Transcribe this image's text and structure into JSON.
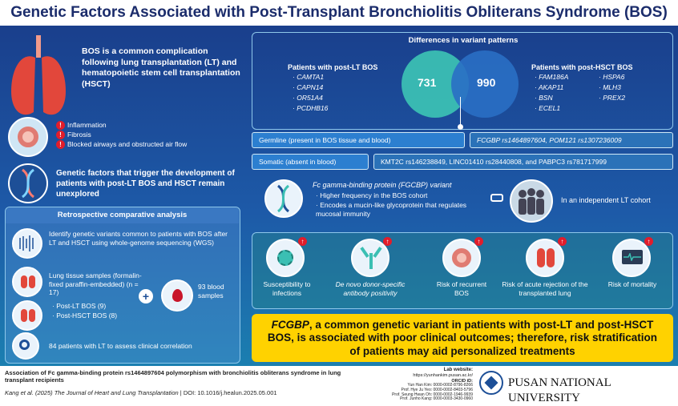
{
  "title": "Genetic Factors Associated with Post-Transplant Bronchiolitis Obliterans Syndrome (BOS)",
  "intro": {
    "text": "BOS is a common complication following lung transplantation (LT) and hematopoietic stem cell transplantation (HSCT)"
  },
  "symptoms": [
    "Inflammation",
    "Fibrosis",
    "Blocked airways and obstructed air flow"
  ],
  "genetic_text": "Genetic factors that trigger the development of patients with post-LT BOS and HSCT remain unexplored",
  "analysis": {
    "title": "Retrospective comparative analysis",
    "step1": "Identify genetic variants common to patients with BOS after LT and HSCT using whole-genome sequencing (WGS)",
    "samples_text": "Lung tissue samples (formalin-fixed paraffin-embedded) (n = 17)",
    "lt": "Post-LT BOS (9)",
    "hsct": "Post-HSCT BOS (8)",
    "plus": "+",
    "blood": "93 blood samples",
    "patients": "84 patients with LT to assess clinical correlation"
  },
  "variants": {
    "title": "Differences in variant patterns",
    "lt_head": "Patients with post-LT BOS",
    "lt_genes": [
      "CAMTA1",
      "CAPN14",
      "OR51A4",
      "PCDHB16"
    ],
    "lt_count": "731",
    "hsct_count": "990",
    "hsct_head": "Patients with post-HSCT BOS",
    "hsct_genes_a": [
      "FAM186A",
      "AKAP11",
      "BSN",
      "ECEL1"
    ],
    "hsct_genes_b": [
      "HSPA6",
      "MLH3",
      "PREX2"
    ]
  },
  "germline": {
    "label": "Germline (present in BOS tissue and blood)",
    "value": "FCGBP rs1464897604, POM121 rs1307236009"
  },
  "somatic": {
    "label": "Somatic (absent in blood)",
    "value": "KMT2C rs146238849, LINC01410 rs28440808, and PABPC3 rs781717999"
  },
  "fcgbp": {
    "head": "Fc gamma-binding protein (FGCBP) variant",
    "p1": "Higher frequency in the BOS cohort",
    "p2": "Encodes a mucin-like glycoprotein that regulates mucosal immunity",
    "cohort": "In an independent LT cohort"
  },
  "outcomes": [
    "Susceptibility to infections",
    "De novo donor-specific antibody positivity",
    "Risk of recurrent BOS",
    "Risk of acute rejection of the transplanted lung",
    "Risk of mortality"
  ],
  "conclusion": {
    "gene": "FCGBP",
    "text": ", a common genetic variant in patients with post-LT and post-HSCT BOS, is associated with poor clinical outcomes; therefore, risk stratification of patients may aid personalized treatments"
  },
  "footer": {
    "article": "Association of Fc gamma-binding protein rs1464897604 polymorphism with bronchiolitis obliterans syndrome in lung transplant recipients",
    "authors": "Kang et al. (2025)",
    "journal": "The Journal of Heart and Lung Transplantation",
    "doi": "| DOI: 10.1016/j.healun.2025.05.001",
    "lab_title": "Lab website:",
    "lab_url": "https://yunhankim.pusan.ac.kr/",
    "orcid_title": "ORCID iD:",
    "orcids": [
      "Yun Han Kim: 0000-0002-8796-8266",
      "Prof. Hye Ju Yeo: 0000-0002-8403-5796",
      "Prof. Seung Hwan Oh: 0000-0002-1946-9939",
      "Prof. Junho Kang: 0000-0003-3430-0960"
    ],
    "university": "PUSAN NATIONAL UNIVERSITY"
  },
  "colors": {
    "title": "#1b2c6b",
    "conclusion_bg": "#ffd200",
    "accent_red": "#e11d2b",
    "lt_circle": "#3bbfb3",
    "hsct_circle": "#2a6fc4"
  }
}
